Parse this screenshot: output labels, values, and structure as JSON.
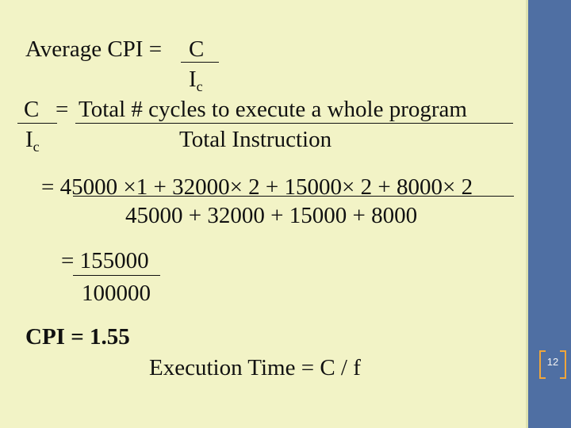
{
  "formula": {
    "avg_label": "Average CPI = ",
    "avg_num": "C",
    "avg_den_main": "I",
    "avg_den_sub": "c",
    "c_label": "C",
    "equals": "=",
    "c_def_num": "Total # cycles to execute a whole program",
    "ic_main": "I",
    "ic_sub": "c",
    "c_def_den": "Total Instruction",
    "calc_num": "= 45000 ×1 + 32000× 2 + 15000× 2 + 8000× 2",
    "calc_den": "45000 + 32000 + 15000 + 8000",
    "ratio_num": "= 155000",
    "ratio_den": "100000",
    "cpi_result": "CPI = 1.55",
    "exec_time": "Execution Time = C / f"
  },
  "slide": {
    "page_number": "12",
    "accent_color": "#f0a63a",
    "sidebar_color": "#4f6fa3",
    "background_color": "#f2f3c6"
  }
}
